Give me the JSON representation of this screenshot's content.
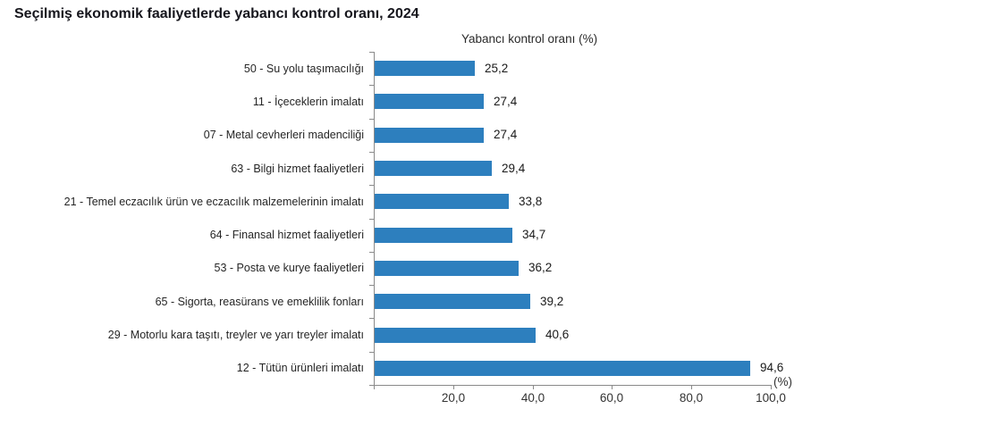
{
  "page": {
    "background_color": "#ffffff"
  },
  "chart_data": {
    "type": "bar",
    "orientation": "horizontal",
    "title": "Seçilmiş ekonomik faaliyetlerde yabancı kontrol oranı, 2024",
    "axis_title": "Yabancı kontrol oranı (%)",
    "categories": [
      "50 - Su yolu taşımacılığı",
      "11 - İçeceklerin imalatı",
      "07 - Metal cevherleri madenciliği",
      "63 - Bilgi hizmet faaliyetleri",
      "21 - Temel eczacılık ürün ve eczacılık malzemelerinin imalatı",
      "64 - Finansal hizmet faaliyetleri",
      "53 - Posta ve kurye faaliyetleri",
      "65 - Sigorta, reasürans ve emeklilik fonları",
      "29 - Motorlu kara taşıtı, treyler ve yarı treyler imalatı",
      "12 - Tütün ürünleri imalatı"
    ],
    "values": [
      25.2,
      27.4,
      27.4,
      29.4,
      33.8,
      34.7,
      36.2,
      39.2,
      40.6,
      94.6
    ],
    "value_labels": [
      "25,2",
      "27,4",
      "27,4",
      "29,4",
      "33,8",
      "34,7",
      "36,2",
      "39,2",
      "40,6",
      "94,6"
    ],
    "xlabel": "",
    "ylabel": "",
    "xlim": [
      0,
      100
    ],
    "x_axis": {
      "tick_values": [
        0,
        20,
        40,
        60,
        80,
        100
      ],
      "tick_labels": [
        "",
        "20,0",
        "40,0",
        "60,0",
        "80,0",
        "100,0"
      ],
      "unit_label": "(%)"
    },
    "grid": false,
    "legend": false,
    "bar_color": "#2d7fbe",
    "axis_color": "#8a8a8a"
  }
}
